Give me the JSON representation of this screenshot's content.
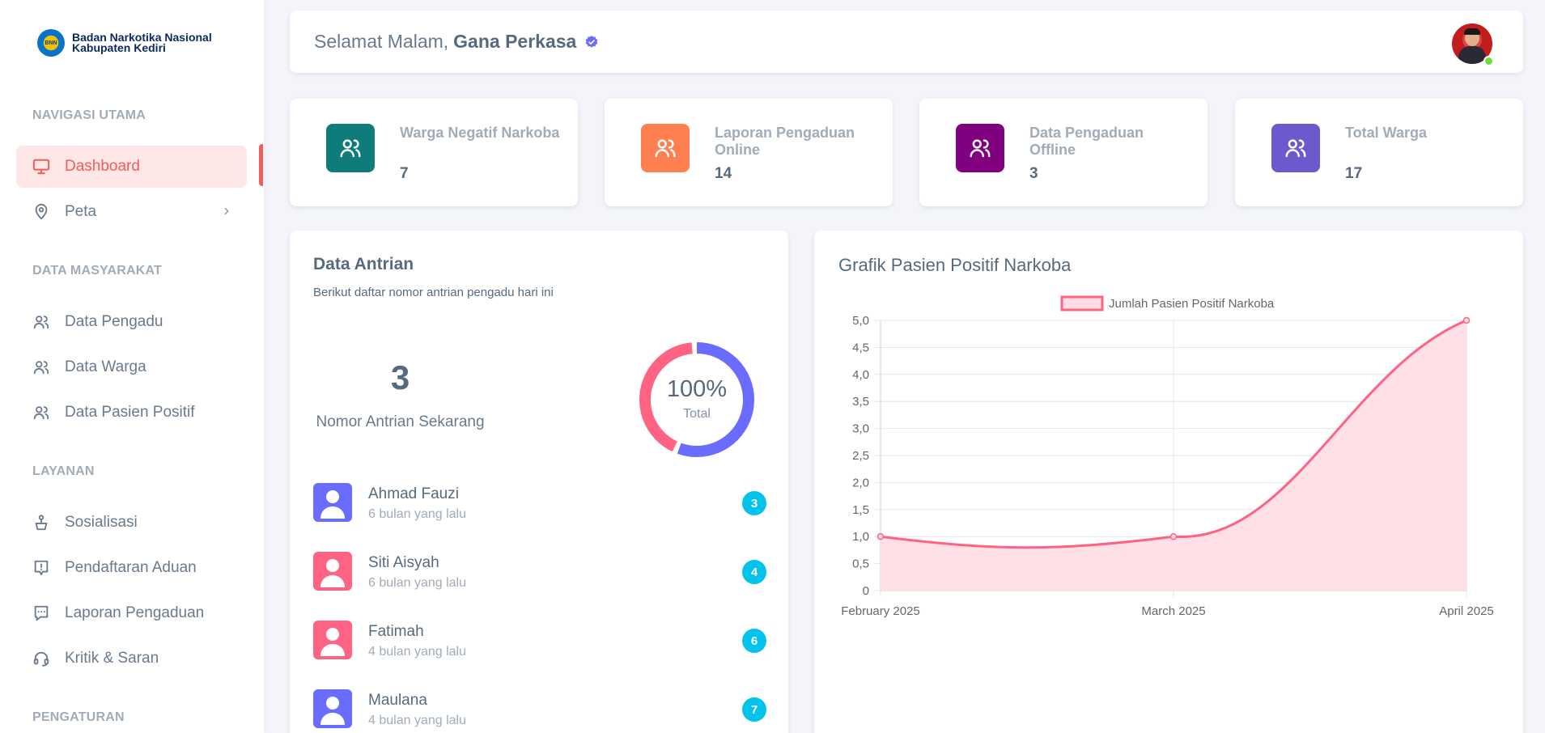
{
  "brand": {
    "line1": "Badan Narkotika Nasional",
    "line2": "Kabupaten Kediri",
    "logo_text": "BNN"
  },
  "sidebar": {
    "sections": {
      "main": "NAVIGASI UTAMA",
      "community": "DATA MASYARAKAT",
      "services": "LAYANAN",
      "settings": "PENGATURAN"
    },
    "items": [
      {
        "label": "Dashboard",
        "icon": "monitor-icon",
        "active": true
      },
      {
        "label": "Peta",
        "icon": "map-pin-icon"
      },
      {
        "label": "Data Pengadu",
        "icon": "users-icon"
      },
      {
        "label": "Data Warga",
        "icon": "users-icon"
      },
      {
        "label": "Data Pasien Positif",
        "icon": "users-icon"
      },
      {
        "label": "Sosialisasi",
        "icon": "podium-icon"
      },
      {
        "label": "Pendaftaran Aduan",
        "icon": "alert-message-icon"
      },
      {
        "label": "Laporan Pengaduan",
        "icon": "chat-report-icon"
      },
      {
        "label": "Kritik & Saran",
        "icon": "headset-icon"
      }
    ]
  },
  "header": {
    "greeting": "Selamat Malam,",
    "username": "Gana Perkasa"
  },
  "stats": [
    {
      "label": "Warga Negatif Narkoba",
      "value": "7",
      "color": "#0e7c7b"
    },
    {
      "label": "Laporan Pengaduan Online",
      "value": "14",
      "color": "#ff7f50"
    },
    {
      "label": "Data Pengaduan Offline",
      "value": "3",
      "color": "#800080"
    },
    {
      "label": "Total Warga",
      "value": "17",
      "color": "#6a5acd"
    }
  ],
  "queue": {
    "title": "Data Antrian",
    "subtitle": "Berikut daftar nomor antrian pengadu hari ini",
    "current_number": "3",
    "current_label": "Nomor Antrian Sekarang",
    "donut_percent": "100%",
    "donut_label": "Total",
    "donut_colors": [
      "#696cff",
      "#ff6384"
    ],
    "donut_split": [
      0.57,
      0.43
    ],
    "people": [
      {
        "name": "Ahmad Fauzi",
        "time": "6 bulan yang lalu",
        "number": "3",
        "avatar_color": "#696cff"
      },
      {
        "name": "Siti Aisyah",
        "time": "6 bulan yang lalu",
        "number": "4",
        "avatar_color": "#ff6384"
      },
      {
        "name": "Fatimah",
        "time": "4 bulan yang lalu",
        "number": "6",
        "avatar_color": "#ff6384"
      },
      {
        "name": "Maulana",
        "time": "4 bulan yang lalu",
        "number": "7",
        "avatar_color": "#696cff"
      }
    ]
  },
  "chart_card": {
    "title": "Grafik Pasien Positif Narkoba"
  },
  "chart_data": {
    "type": "area",
    "categories": [
      "February 2025",
      "March 2025",
      "April 2025"
    ],
    "series": [
      {
        "name": "Jumlah Pasien Positif Narkoba",
        "values": [
          1,
          1,
          5
        ],
        "color": "#ff6384",
        "fill": "#ffdde4"
      }
    ],
    "ylim": [
      0,
      5
    ],
    "yticks": [
      "0",
      "0,5",
      "1,0",
      "1,5",
      "2,0",
      "2,5",
      "3,0",
      "3,5",
      "4,0",
      "4,5",
      "5,0"
    ],
    "legend": "top-center",
    "grid": true
  }
}
